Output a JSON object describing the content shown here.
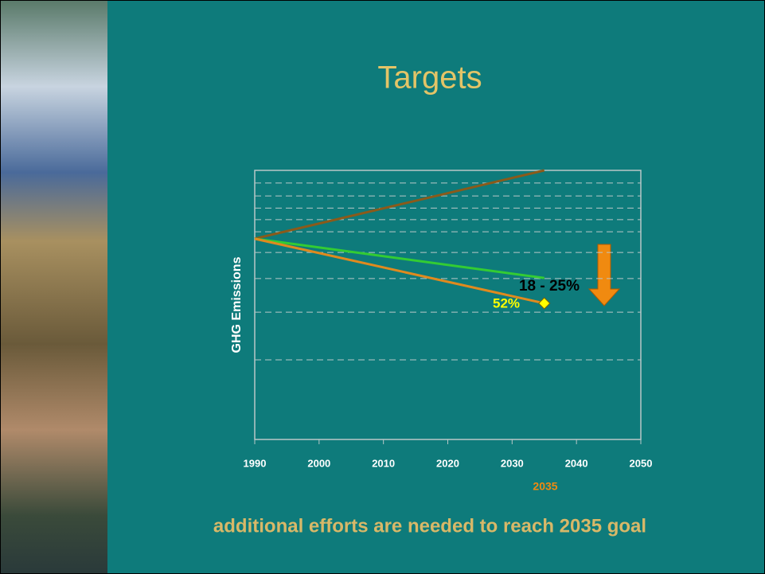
{
  "chart_data": {
    "type": "line",
    "title": "Targets",
    "ylabel": "GHG Emissions",
    "footer": "additional efforts are needed to reach 2035 goal",
    "annotations": [
      "18 - 25%",
      "52%",
      "2035"
    ],
    "xlim": [
      1990,
      2050
    ],
    "xticks": [
      1990,
      2000,
      2010,
      2020,
      2030,
      2040,
      2050
    ],
    "ylim": [
      0,
      100
    ],
    "ygrid": [
      29.6,
      47.3,
      59.8,
      69.5,
      77.2,
      81.7,
      86,
      90.5,
      95.3
    ],
    "series": [
      {
        "color": "#8b5a1a",
        "x": [
          1990,
          2035
        ],
        "values": [
          74.6,
          100
        ]
      },
      {
        "color": "#33cc33",
        "x": [
          1990,
          2035
        ],
        "values": [
          74.6,
          60
        ]
      },
      {
        "color": "#e08a1e",
        "x": [
          1990,
          2035
        ],
        "values": [
          74.6,
          50.6
        ]
      }
    ]
  }
}
